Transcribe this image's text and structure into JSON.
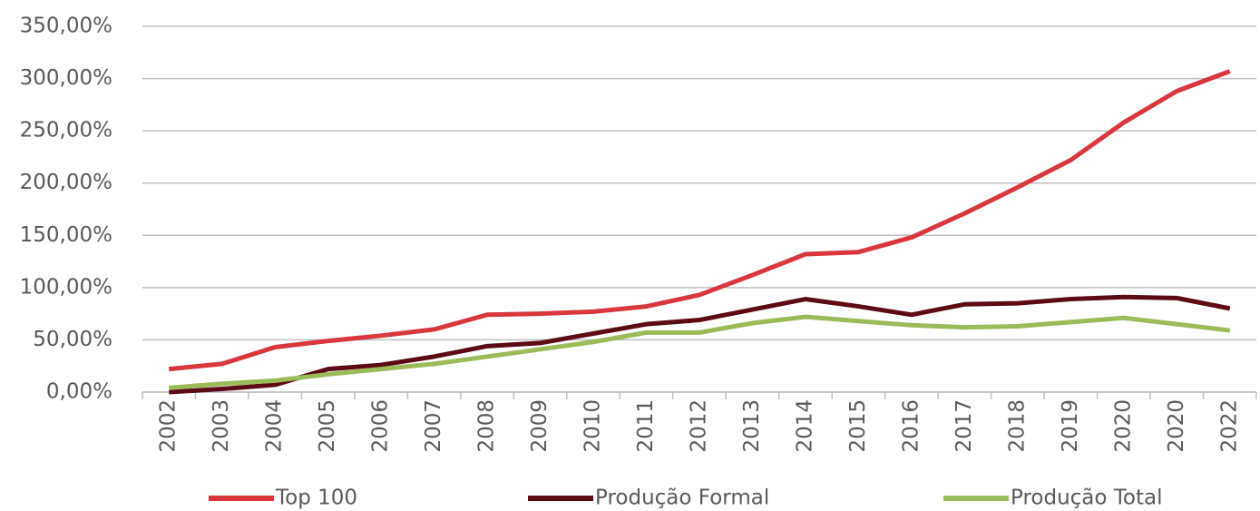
{
  "chart_data": {
    "type": "line",
    "categories": [
      "2002",
      "2003",
      "2004",
      "2005",
      "2006",
      "2007",
      "2008",
      "2009",
      "2010",
      "2011",
      "2012",
      "2013",
      "2014",
      "2015",
      "2016",
      "2017",
      "2018",
      "2019",
      "2020",
      "2020",
      "2022"
    ],
    "series": [
      {
        "name": "Top 100",
        "color": "#d9363e",
        "values": [
          22,
          27,
          43,
          49,
          54,
          60,
          74,
          75,
          77,
          82,
          93,
          112,
          132,
          134,
          148,
          171,
          196,
          222,
          258,
          288,
          307
        ]
      },
      {
        "name": "Produção Formal",
        "color": "#5c0a14",
        "values": [
          0,
          3,
          7,
          22,
          26,
          34,
          44,
          47,
          56,
          65,
          69,
          79,
          89,
          82,
          74,
          84,
          85,
          89,
          91,
          90,
          80
        ]
      },
      {
        "name": "Produção Total",
        "color": "#9bbb59",
        "values": [
          4,
          8,
          11,
          17,
          22,
          27,
          34,
          41,
          48,
          57,
          57,
          66,
          72,
          68,
          64,
          62,
          63,
          67,
          71,
          65,
          59
        ]
      }
    ],
    "ylim": [
      0,
      350
    ],
    "yticks": [
      {
        "value": 0,
        "label": "0,00%"
      },
      {
        "value": 50,
        "label": "50,00%"
      },
      {
        "value": 100,
        "label": "100,00%"
      },
      {
        "value": 150,
        "label": "150,00%"
      },
      {
        "value": 200,
        "label": "200,00%"
      },
      {
        "value": 250,
        "label": "250,00%"
      },
      {
        "value": 300,
        "label": "300,00%"
      },
      {
        "value": 350,
        "label": "350,00%"
      }
    ],
    "grid": true,
    "legend": "bottom"
  }
}
